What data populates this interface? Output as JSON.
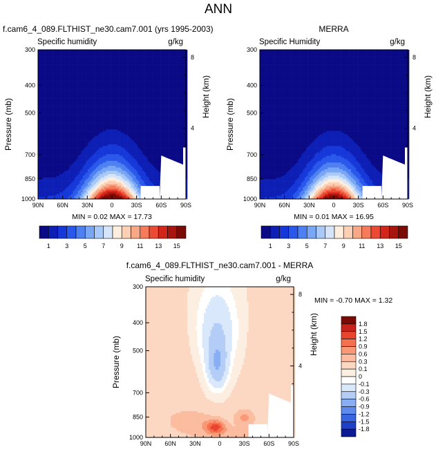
{
  "page": {
    "title": "ANN"
  },
  "chart_data": [
    {
      "type": "heatmap",
      "title": "f.cam6_4_089.FLTHIST_ne30.cam7.001 (yrs 1995-2003)",
      "left_string": "Specific humidity",
      "right_string": "g/kg",
      "xlabel": "",
      "ylabel": "Pressure (mb)",
      "y2label": "Height (km)",
      "x_ticks": [
        "90N",
        "60N",
        "30N",
        "0",
        "30S",
        "60S",
        "90S"
      ],
      "y_ticks": [
        300,
        400,
        500,
        700,
        850,
        1000
      ],
      "y2_ticks": [
        8,
        4
      ],
      "xlim": [
        90,
        -90
      ],
      "ylim": [
        1000,
        300
      ],
      "min_max": "MIN =  0.02  MAX =  17.73",
      "levels": [
        "1",
        "3",
        "5",
        "7",
        "9",
        "11",
        "13",
        "15"
      ],
      "colors": [
        "#0a0a86",
        "#0d1fb5",
        "#1638d9",
        "#2a58ea",
        "#4e80f2",
        "#7aa6f6",
        "#a9c9f8",
        "#d6e5fa",
        "#fdeedd",
        "#fcd0b4",
        "#f9a887",
        "#f67b5a",
        "#ec4a33",
        "#d2261a",
        "#a8140e",
        "#7a0a06"
      ]
    },
    {
      "type": "heatmap",
      "title": "MERRA",
      "left_string": "Specific Humidity",
      "right_string": "g/kg",
      "xlabel": "",
      "ylabel": "Pressure (mb)",
      "y2label": "Height (km)",
      "x_ticks": [
        "90N",
        "60N",
        "30N",
        "0",
        "30S",
        "60S",
        "90S"
      ],
      "y_ticks": [
        300,
        400,
        500,
        700,
        850,
        1000
      ],
      "y2_ticks": [
        8,
        4
      ],
      "xlim": [
        90,
        -90
      ],
      "ylim": [
        1000,
        300
      ],
      "min_max": "MIN =  0.01  MAX =  16.95",
      "levels": [
        "1",
        "3",
        "5",
        "7",
        "9",
        "11",
        "13",
        "15"
      ],
      "colors": [
        "#0a0a86",
        "#0d1fb5",
        "#1638d9",
        "#2a58ea",
        "#4e80f2",
        "#7aa6f6",
        "#a9c9f8",
        "#d6e5fa",
        "#fdeedd",
        "#fcd0b4",
        "#f9a887",
        "#f67b5a",
        "#ec4a33",
        "#d2261a",
        "#a8140e",
        "#7a0a06"
      ]
    },
    {
      "type": "heatmap",
      "title": "f.cam6_4_089.FLTHIST_ne30.cam7.001 - MERRA",
      "left_string": "Specific humidity",
      "right_string": "g/kg",
      "xlabel": "",
      "ylabel": "Pressure (mb)",
      "y2label": "Height (km)",
      "x_ticks": [
        "90N",
        "60N",
        "30N",
        "0",
        "30S",
        "60S",
        "90S"
      ],
      "y_ticks": [
        300,
        400,
        500,
        700,
        850,
        1000
      ],
      "y2_ticks": [
        8,
        4
      ],
      "xlim": [
        90,
        -90
      ],
      "ylim": [
        1000,
        300
      ],
      "min_max": "MIN = -0.70  MAX =  1.32",
      "levels": [
        "1.8",
        "1.5",
        "1.2",
        "0.9",
        "0.6",
        "0.3",
        "0.1",
        "0",
        "-0.1",
        "-0.3",
        "-0.6",
        "-0.9",
        "-1.2",
        "-1.5",
        "-1.8"
      ],
      "colors": [
        "#7a0a06",
        "#c8231a",
        "#e8442e",
        "#f5704f",
        "#f89876",
        "#fbbc9f",
        "#fcd8c2",
        "#fdeee2",
        "#ffffff",
        "#d9e8fb",
        "#b3cdf7",
        "#89aef3",
        "#5e8aee",
        "#3a65e0",
        "#1f3fc6",
        "#0c1a96"
      ]
    }
  ]
}
